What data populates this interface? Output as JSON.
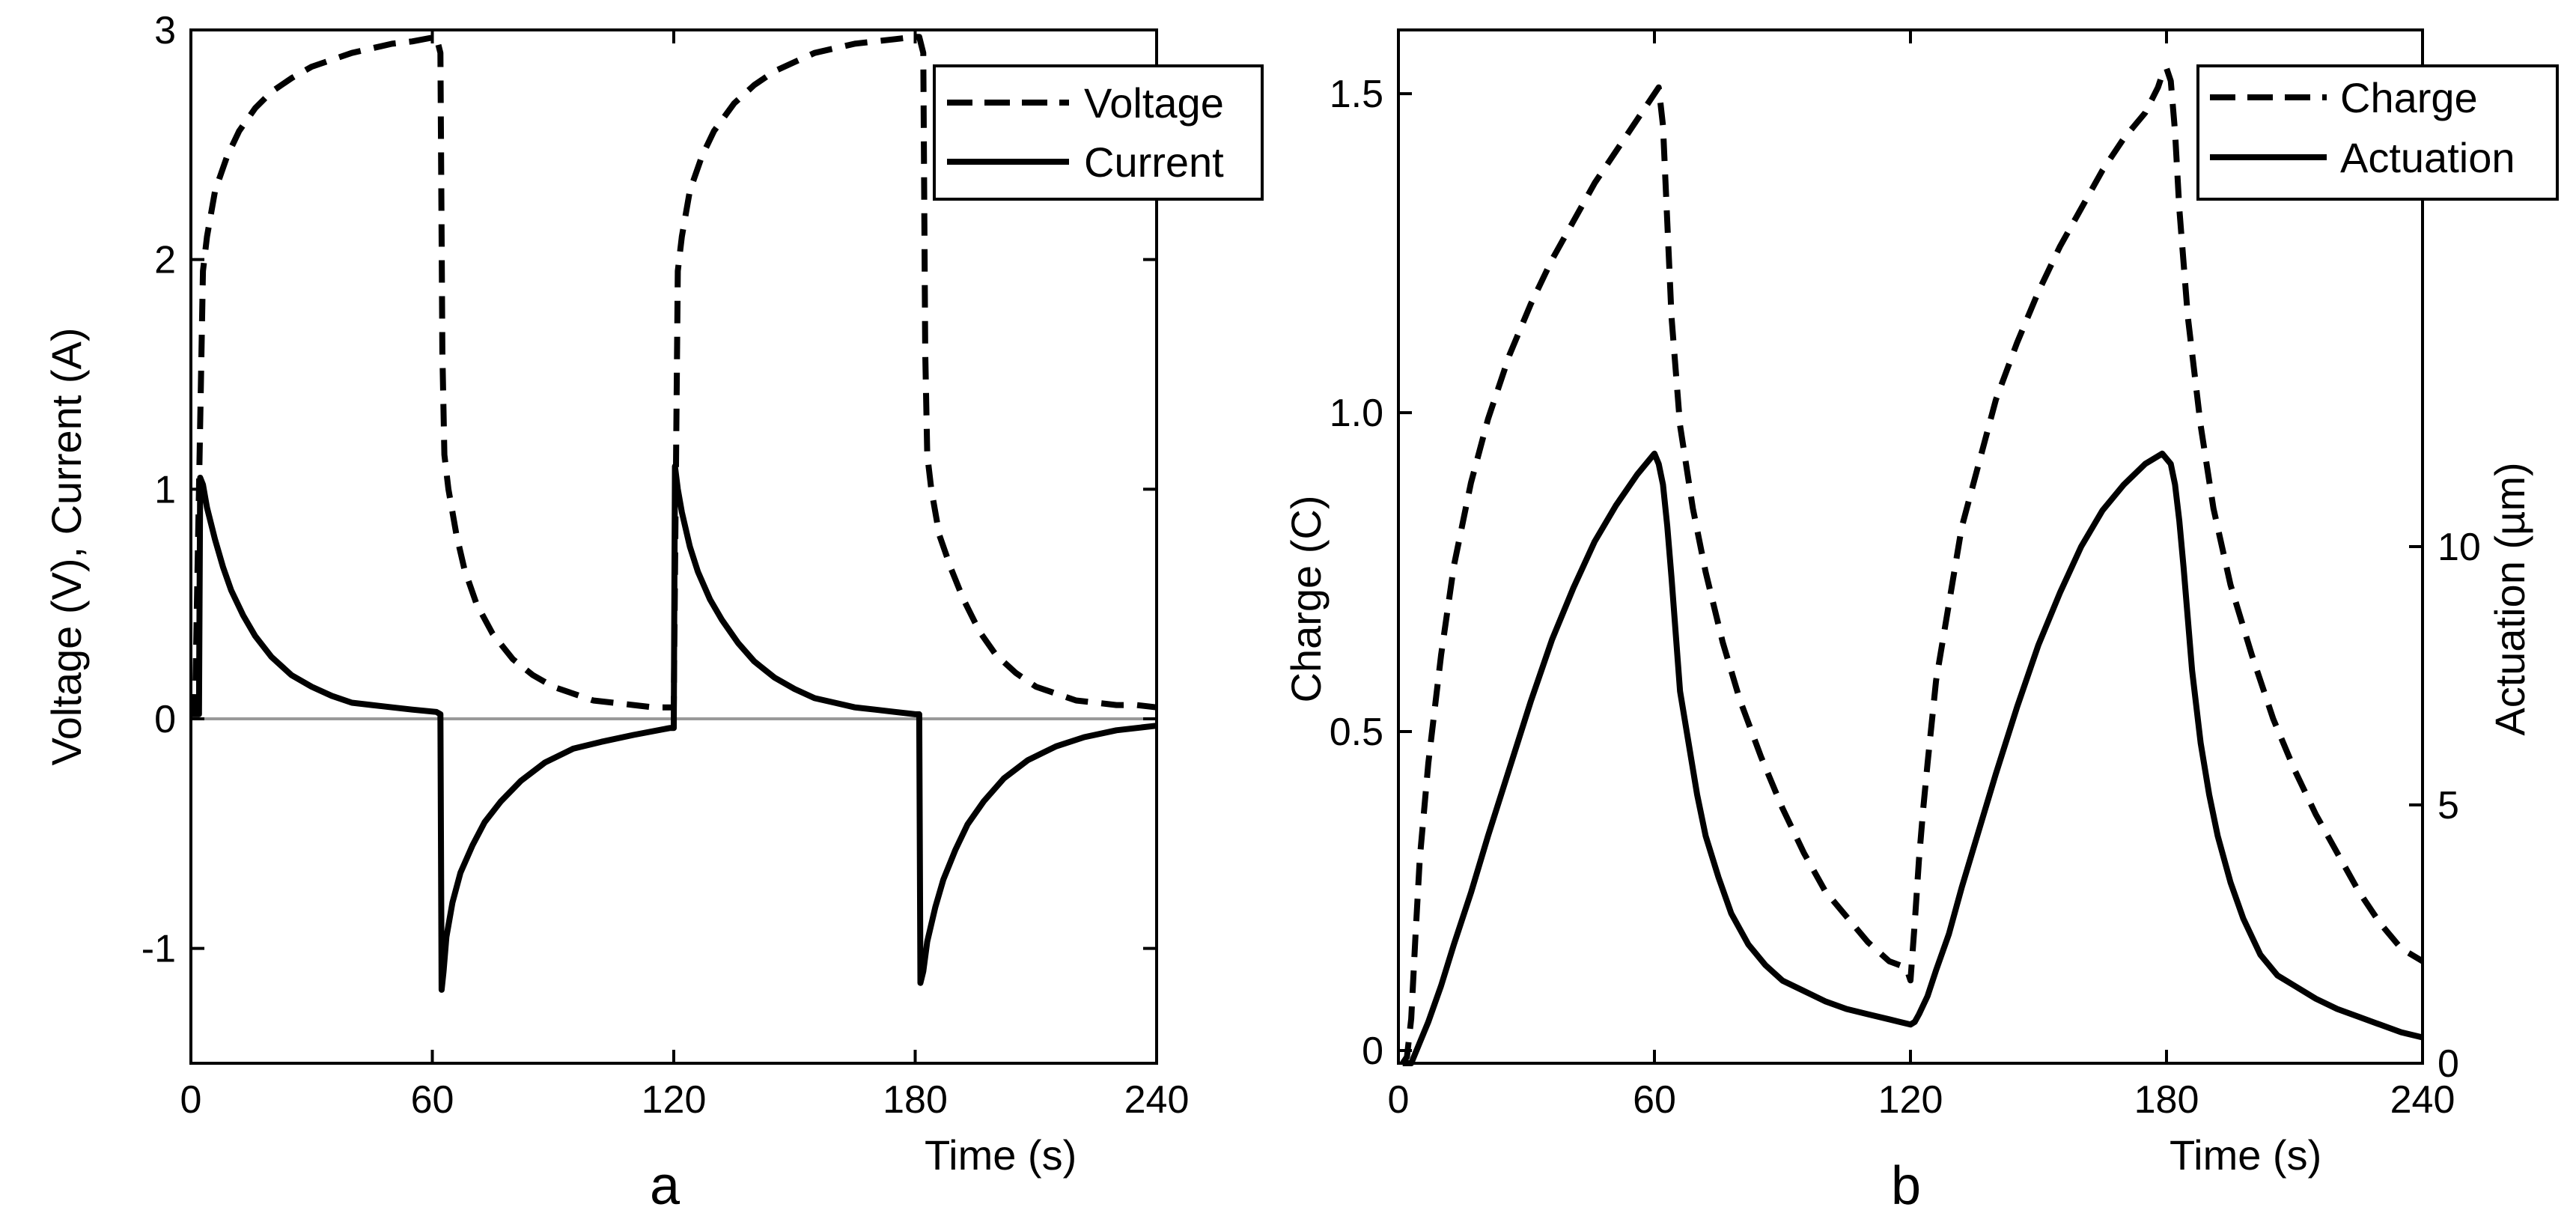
{
  "chart_data": [
    {
      "id": "a",
      "type": "line",
      "panel_label": "a",
      "xlabel": "Time (s)",
      "ylabel": "Voltage (V), Current (A)",
      "xlim": [
        0,
        240
      ],
      "ylim": [
        -1.5,
        3
      ],
      "xticks": [
        "0",
        "60",
        "120",
        "180",
        "240"
      ],
      "xtick_values": [
        0,
        60,
        120,
        180,
        240
      ],
      "yticks": [
        "-1",
        "0",
        "1",
        "2",
        "3"
      ],
      "ytick_values": [
        -1,
        0,
        1,
        2,
        3
      ],
      "legend_position": "top-right",
      "zero_line": true,
      "series": [
        {
          "name": "Voltage",
          "style": "dashed",
          "x": [
            0,
            1,
            2,
            3,
            4,
            6,
            9,
            12,
            16,
            20,
            25,
            30,
            35,
            40,
            45,
            50,
            55,
            61,
            62,
            62.5,
            63,
            64,
            66,
            68,
            71,
            75,
            80,
            85,
            90,
            95,
            100,
            105,
            110,
            115,
            119,
            120,
            120.5,
            121,
            122,
            124,
            127,
            130,
            135,
            140,
            145,
            150,
            155,
            160,
            165,
            170,
            175,
            180,
            181,
            182,
            182.5,
            183,
            184,
            186,
            189,
            192,
            196,
            200,
            205,
            210,
            215,
            220,
            225,
            230,
            235,
            240
          ],
          "y": [
            0.02,
            0.03,
            1.0,
            1.95,
            2.1,
            2.3,
            2.45,
            2.56,
            2.66,
            2.73,
            2.79,
            2.84,
            2.87,
            2.9,
            2.92,
            2.94,
            2.95,
            2.97,
            2.9,
            1.6,
            1.15,
            1.0,
            0.8,
            0.65,
            0.5,
            0.37,
            0.26,
            0.19,
            0.14,
            0.11,
            0.08,
            0.07,
            0.06,
            0.05,
            0.05,
            0.05,
            1.0,
            1.95,
            2.1,
            2.3,
            2.45,
            2.56,
            2.68,
            2.76,
            2.82,
            2.86,
            2.9,
            2.92,
            2.94,
            2.95,
            2.96,
            2.97,
            2.97,
            2.9,
            1.6,
            1.15,
            1.0,
            0.8,
            0.65,
            0.52,
            0.38,
            0.28,
            0.2,
            0.14,
            0.11,
            0.08,
            0.07,
            0.06,
            0.06,
            0.05
          ]
        },
        {
          "name": "Current",
          "style": "solid",
          "x": [
            0,
            1,
            2,
            2.3,
            3,
            4,
            6,
            8,
            10,
            13,
            16,
            20,
            25,
            30,
            35,
            40,
            45,
            50,
            55,
            61,
            62,
            62.3,
            62.8,
            63.5,
            65,
            67,
            70,
            73,
            77,
            82,
            88,
            95,
            102,
            110,
            119,
            120,
            120.3,
            121,
            122,
            124,
            126,
            129,
            132,
            136,
            140,
            145,
            150,
            155,
            160,
            165,
            170,
            175,
            180,
            181,
            181.3,
            182,
            183,
            185,
            187,
            190,
            193,
            197,
            202,
            208,
            215,
            222,
            230,
            240
          ],
          "y": [
            0.02,
            0.02,
            0.02,
            1.05,
            1.02,
            0.92,
            0.78,
            0.66,
            0.56,
            0.45,
            0.36,
            0.27,
            0.19,
            0.14,
            0.1,
            0.07,
            0.06,
            0.05,
            0.04,
            0.03,
            0.02,
            -1.18,
            -1.1,
            -0.95,
            -0.8,
            -0.67,
            -0.55,
            -0.45,
            -0.36,
            -0.27,
            -0.19,
            -0.13,
            -0.1,
            -0.07,
            -0.04,
            -0.04,
            1.1,
            1.0,
            0.9,
            0.75,
            0.64,
            0.52,
            0.43,
            0.33,
            0.25,
            0.18,
            0.13,
            0.09,
            0.07,
            0.05,
            0.04,
            0.03,
            0.02,
            0.02,
            -1.15,
            -1.1,
            -0.97,
            -0.82,
            -0.7,
            -0.57,
            -0.46,
            -0.36,
            -0.26,
            -0.18,
            -0.12,
            -0.08,
            -0.05,
            -0.03
          ]
        }
      ]
    },
    {
      "id": "b",
      "type": "line",
      "panel_label": "b",
      "xlabel": "Time (s)",
      "ylabel": "Charge (C)",
      "y2label": "Actuation (µm)",
      "xlim": [
        0,
        240
      ],
      "ylim": [
        -0.02,
        1.6
      ],
      "y2lim": [
        0,
        20
      ],
      "xticks": [
        "0",
        "60",
        "120",
        "180",
        "240"
      ],
      "xtick_values": [
        0,
        60,
        120,
        180,
        240
      ],
      "yticks": [
        "0",
        "0.5",
        "1.0",
        "1.5"
      ],
      "ytick_values": [
        0,
        0.5,
        1.0,
        1.5
      ],
      "y2ticks": [
        "0",
        "5",
        "10"
      ],
      "y2tick_values": [
        0,
        5,
        10
      ],
      "legend_position": "top-right",
      "series": [
        {
          "name": "Charge",
          "style": "dashed",
          "axis": "left",
          "x": [
            1,
            2,
            3,
            4,
            5,
            7,
            10,
            13,
            17,
            21,
            26,
            31,
            36,
            41,
            46,
            51,
            56,
            59,
            60,
            61,
            62,
            63,
            64,
            66,
            69,
            72,
            76,
            80,
            85,
            90,
            95,
            100,
            105,
            110,
            115,
            119,
            120,
            121,
            122,
            123,
            124,
            126,
            129,
            132,
            136,
            140,
            145,
            150,
            155,
            160,
            165,
            170,
            175,
            178,
            179,
            180,
            181,
            182,
            183,
            185,
            188,
            191,
            195,
            200,
            205,
            210,
            215,
            220,
            225,
            230,
            235,
            240
          ],
          "y": [
            -0.02,
            -0.01,
            0.05,
            0.18,
            0.3,
            0.45,
            0.62,
            0.76,
            0.89,
            0.99,
            1.09,
            1.17,
            1.24,
            1.3,
            1.36,
            1.41,
            1.46,
            1.49,
            1.5,
            1.51,
            1.45,
            1.3,
            1.15,
            0.98,
            0.85,
            0.75,
            0.64,
            0.55,
            0.46,
            0.38,
            0.31,
            0.25,
            0.21,
            0.17,
            0.14,
            0.13,
            0.11,
            0.2,
            0.3,
            0.38,
            0.45,
            0.58,
            0.7,
            0.82,
            0.92,
            1.02,
            1.11,
            1.19,
            1.26,
            1.32,
            1.38,
            1.43,
            1.47,
            1.51,
            1.53,
            1.54,
            1.52,
            1.44,
            1.32,
            1.15,
            0.98,
            0.85,
            0.73,
            0.62,
            0.52,
            0.44,
            0.37,
            0.31,
            0.25,
            0.2,
            0.16,
            0.14
          ]
        },
        {
          "name": "Actuation",
          "style": "solid",
          "axis": "right",
          "x": [
            1,
            2,
            3,
            4,
            5,
            7,
            10,
            13,
            17,
            21,
            26,
            31,
            36,
            41,
            46,
            51,
            56,
            59,
            60,
            61,
            62,
            63,
            64,
            65,
            66,
            68,
            70,
            72,
            75,
            78,
            82,
            86,
            90,
            95,
            100,
            105,
            110,
            115,
            120,
            121,
            122,
            124,
            126,
            129,
            132,
            136,
            140,
            145,
            150,
            155,
            160,
            165,
            170,
            175,
            179,
            180,
            181,
            182,
            183,
            184,
            185,
            186,
            188,
            190,
            192,
            195,
            198,
            202,
            206,
            210,
            215,
            220,
            225,
            230,
            235,
            240
          ],
          "y": [
            -0.2,
            -0.2,
            0.0,
            0.2,
            0.4,
            0.8,
            1.5,
            2.3,
            3.3,
            4.4,
            5.7,
            7.0,
            8.2,
            9.2,
            10.1,
            10.8,
            11.4,
            11.7,
            11.8,
            11.6,
            11.2,
            10.4,
            9.4,
            8.3,
            7.2,
            6.2,
            5.2,
            4.4,
            3.6,
            2.9,
            2.3,
            1.9,
            1.6,
            1.4,
            1.2,
            1.05,
            0.95,
            0.85,
            0.75,
            0.8,
            0.95,
            1.3,
            1.8,
            2.5,
            3.4,
            4.5,
            5.6,
            6.9,
            8.1,
            9.1,
            10.0,
            10.7,
            11.2,
            11.6,
            11.8,
            11.7,
            11.6,
            11.2,
            10.5,
            9.6,
            8.6,
            7.6,
            6.2,
            5.2,
            4.4,
            3.5,
            2.8,
            2.1,
            1.7,
            1.5,
            1.25,
            1.05,
            0.9,
            0.75,
            0.6,
            0.5
          ]
        }
      ]
    }
  ]
}
